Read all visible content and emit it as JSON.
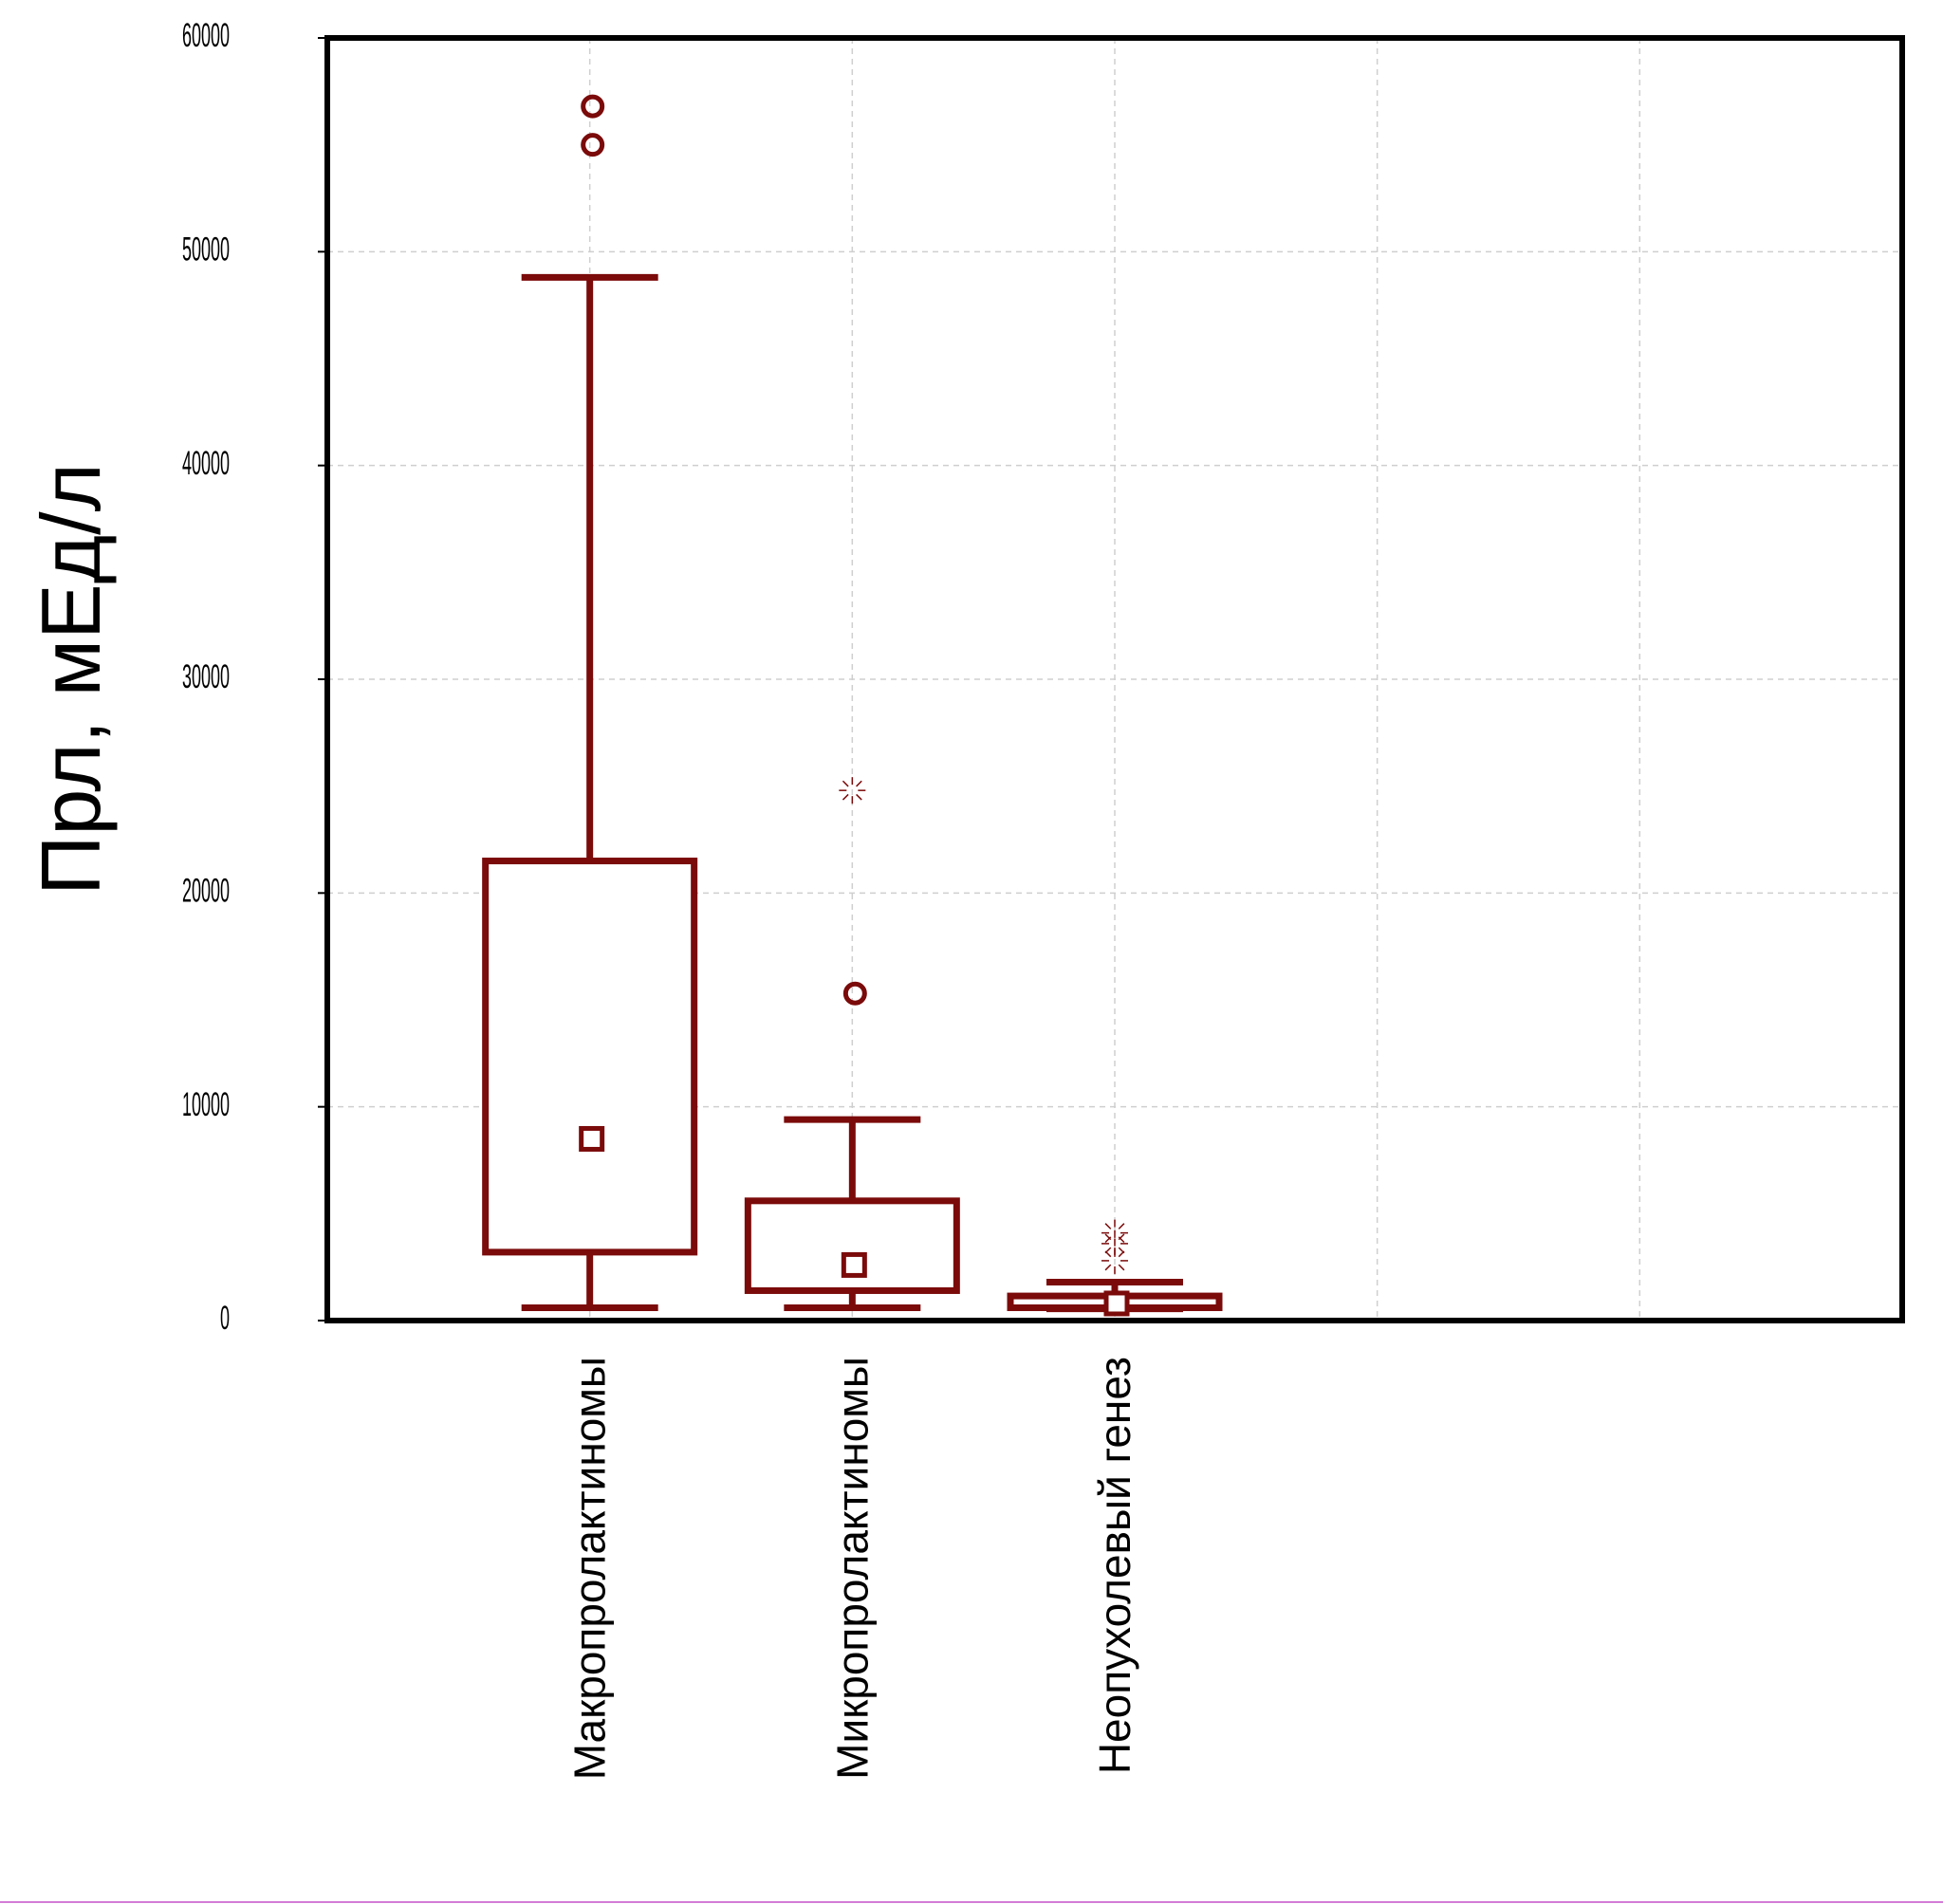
{
  "chart_data": {
    "type": "box",
    "ylabel": "Прл, мЕд/л",
    "xlabel": "",
    "ylim": [
      0,
      60000
    ],
    "yticks": [
      0,
      10000,
      20000,
      30000,
      40000,
      50000,
      60000
    ],
    "ytick_labels": [
      "0",
      "10000",
      "20000",
      "30000",
      "40000",
      "50000",
      "60000"
    ],
    "grid": true,
    "color": "#7b0a0a",
    "x_slots": 6,
    "categories": [
      "Макропролактиномы",
      "Микропролактиномы",
      "Неопухолевый генез"
    ],
    "series": [
      {
        "category": "Макропролактиномы",
        "slot": 2,
        "whisker_low": 600,
        "q1": 3200,
        "median": 8500,
        "q3": 21500,
        "whisker_high": 48800,
        "outliers": [
          55000,
          56800
        ],
        "extremes": []
      },
      {
        "category": "Микропролактиномы",
        "slot": 3,
        "whisker_low": 600,
        "q1": 1400,
        "median": 2600,
        "q3": 5600,
        "whisker_high": 9400,
        "outliers": [
          15300
        ],
        "extremes": [
          24800
        ]
      },
      {
        "category": "Неопухолевый генез",
        "slot": 4,
        "whisker_low": 550,
        "q1": 600,
        "median": 800,
        "q3": 1150,
        "whisker_high": 1800,
        "outliers": [],
        "extremes": [
          2800,
          3600,
          4100
        ]
      }
    ]
  }
}
